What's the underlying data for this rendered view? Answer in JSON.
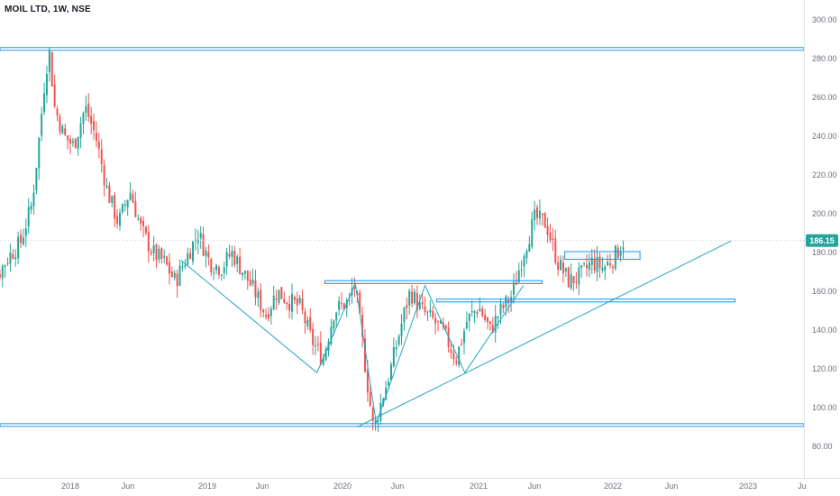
{
  "header": {
    "title": "MOIL LTD, 1W, NSE"
  },
  "colors": {
    "up": "#26a69a",
    "down": "#ef5350",
    "drawing": "#2196f3",
    "trend": "#26a6c4",
    "badge": "#26a69a"
  },
  "price_axis": {
    "labels": [
      "300.00",
      "280.00",
      "260.00",
      "240.00",
      "220.00",
      "200.00",
      "180.00",
      "160.00",
      "140.00",
      "120.00",
      "100.00",
      "80.00"
    ],
    "current_price": "186.15"
  },
  "time_axis": {
    "labels": [
      "2018",
      "Jun",
      "2019",
      "Jun",
      "2020",
      "Jun",
      "2021",
      "Jun",
      "2022",
      "Jun",
      "2023",
      "Ju"
    ]
  },
  "chart_data": {
    "type": "candlestick",
    "title": "MOIL LTD, 1W, NSE",
    "interval": "1W",
    "exchange": "NSE",
    "ylim": [
      70,
      305
    ],
    "x_range": [
      "2017-05",
      "2023-07"
    ],
    "x_ticks": [
      "2018",
      "Jun",
      "2019",
      "Jun",
      "2020",
      "Jun",
      "2021",
      "Jun",
      "2022",
      "Jun",
      "2023",
      "Ju"
    ],
    "grid": false,
    "last_price": 186.15,
    "close_path": [
      [
        "2017-05-01",
        160
      ],
      [
        "2017-06-15",
        167
      ],
      [
        "2017-07-20",
        178
      ],
      [
        "2017-08-20",
        185
      ],
      [
        "2017-09-20",
        205
      ],
      [
        "2017-10-10",
        240
      ],
      [
        "2017-10-25",
        270
      ],
      [
        "2017-11-05",
        285
      ],
      [
        "2017-11-20",
        255
      ],
      [
        "2017-12-15",
        240
      ],
      [
        "2018-01-10",
        235
      ],
      [
        "2018-02-10",
        255
      ],
      [
        "2018-03-10",
        240
      ],
      [
        "2018-04-10",
        212
      ],
      [
        "2018-05-10",
        195
      ],
      [
        "2018-06-10",
        212
      ],
      [
        "2018-07-10",
        192
      ],
      [
        "2018-08-10",
        180
      ],
      [
        "2018-09-10",
        175
      ],
      [
        "2018-10-10",
        165
      ],
      [
        "2018-11-10",
        178
      ],
      [
        "2018-12-10",
        190
      ],
      [
        "2019-01-10",
        175
      ],
      [
        "2019-02-10",
        172
      ],
      [
        "2019-03-10",
        180
      ],
      [
        "2019-04-10",
        170
      ],
      [
        "2019-05-10",
        160
      ],
      [
        "2019-06-10",
        148
      ],
      [
        "2019-07-10",
        160
      ],
      [
        "2019-08-10",
        155
      ],
      [
        "2019-09-10",
        152
      ],
      [
        "2019-10-10",
        135
      ],
      [
        "2019-11-10",
        125
      ],
      [
        "2019-12-10",
        150
      ],
      [
        "2020-01-20",
        155
      ],
      [
        "2020-02-01",
        165
      ],
      [
        "2020-02-20",
        140
      ],
      [
        "2020-03-10",
        110
      ],
      [
        "2020-03-25",
        88
      ],
      [
        "2020-04-10",
        100
      ],
      [
        "2020-05-10",
        120
      ],
      [
        "2020-06-10",
        145
      ],
      [
        "2020-07-01",
        160
      ],
      [
        "2020-08-01",
        150
      ],
      [
        "2020-09-01",
        145
      ],
      [
        "2020-10-01",
        138
      ],
      [
        "2020-11-01",
        125
      ],
      [
        "2020-12-01",
        145
      ],
      [
        "2021-01-01",
        152
      ],
      [
        "2021-02-01",
        140
      ],
      [
        "2021-03-01",
        150
      ],
      [
        "2021-04-01",
        158
      ],
      [
        "2021-05-01",
        180
      ],
      [
        "2021-06-01",
        198
      ],
      [
        "2021-07-01",
        195
      ],
      [
        "2021-08-01",
        175
      ],
      [
        "2021-09-01",
        165
      ],
      [
        "2021-10-01",
        168
      ],
      [
        "2021-11-01",
        175
      ],
      [
        "2021-12-01",
        172
      ],
      [
        "2022-01-01",
        178
      ],
      [
        "2022-01-25",
        186
      ]
    ],
    "annotations": {
      "horizontal_levels": [
        285,
        91
      ],
      "zones": [
        {
          "from": "2019-11-15",
          "to": "2021-06-20",
          "low": 164,
          "high": 165.5
        },
        {
          "from": "2020-09-10",
          "to": "2022-11-20",
          "low": 154.5,
          "high": 156
        },
        {
          "from": "2021-08-20",
          "to": "2022-03-10",
          "low": 176.5,
          "high": 180.5
        }
      ],
      "trendlines": [
        [
          [
            "2020-02-10",
            90
          ],
          [
            "2022-11-10",
            186
          ]
        ]
      ],
      "zigzag": [
        [
          "2018-10-25",
          176
        ],
        [
          "2019-10-25",
          118
        ],
        [
          "2020-02-05",
          164
        ],
        [
          "2020-04-01",
          92
        ],
        [
          "2020-08-10",
          163
        ],
        [
          "2020-11-25",
          118
        ],
        [
          "2021-05-01",
          163
        ]
      ]
    }
  }
}
